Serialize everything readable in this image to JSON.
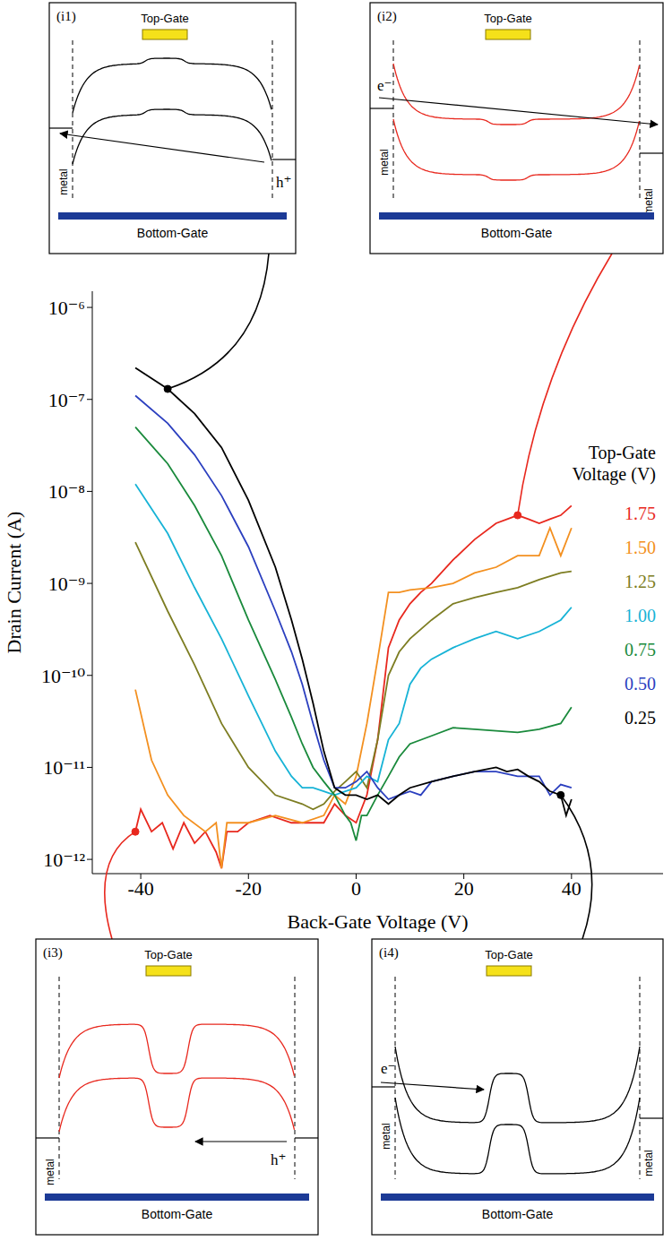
{
  "chart_data": {
    "type": "line",
    "x_label": "Back-Gate Voltage (V)",
    "y_label": "Drain Current (A)",
    "log": "y",
    "grid": false,
    "xlim": [
      -49,
      57
    ],
    "xticks": [
      -40,
      -20,
      0,
      20,
      40
    ],
    "ylim": [
      7e-13,
      1.5e-06
    ],
    "yticks": [
      {
        "value": 1e-12,
        "label": "10⁻¹²"
      },
      {
        "value": 1e-11,
        "label": "10⁻¹¹"
      },
      {
        "value": 1e-10,
        "label": "10⁻¹⁰"
      },
      {
        "value": 1e-09,
        "label": "10⁻⁹"
      },
      {
        "value": 1e-08,
        "label": "10⁻⁸"
      },
      {
        "value": 1e-07,
        "label": "10⁻⁷"
      },
      {
        "value": 1e-06,
        "label": "10⁻⁶"
      }
    ],
    "legend": "right",
    "legend_title": "Top-Gate Voltage (V)",
    "series": [
      {
        "name": "1.75",
        "color": "#e8281e",
        "x": [
          -41,
          -40,
          -38,
          -36,
          -34,
          -32,
          -30,
          -28,
          -26,
          -25,
          -24,
          -22,
          -20,
          -16,
          -12,
          -8,
          -6,
          -4,
          -2,
          0,
          2,
          4,
          6,
          8,
          10,
          12,
          14,
          18,
          22,
          26,
          30,
          32,
          34,
          36,
          38,
          40
        ],
        "values": [
          2e-12,
          3.5e-12,
          2e-12,
          2.5e-12,
          1.3e-12,
          2.5e-12,
          1.5e-12,
          2e-12,
          1.2e-12,
          8e-13,
          2e-12,
          2e-12,
          2.5e-12,
          3e-12,
          2.5e-12,
          2.5e-12,
          2.5e-12,
          4e-12,
          3e-12,
          2.5e-12,
          5e-12,
          2e-11,
          2e-10,
          4e-10,
          6e-10,
          8e-10,
          1e-09,
          1.8e-09,
          3e-09,
          4.5e-09,
          5.5e-09,
          5e-09,
          4.5e-09,
          5e-09,
          5.5e-09,
          7e-09
        ]
      },
      {
        "name": "1.50",
        "color": "#f39020",
        "x": [
          -41,
          -38,
          -35,
          -32,
          -28,
          -26,
          -25,
          -24,
          -20,
          -15,
          -10,
          -6,
          -4,
          -2,
          0,
          2,
          4,
          6,
          8,
          10,
          14,
          18,
          22,
          26,
          30,
          34,
          36,
          38,
          40
        ],
        "values": [
          7e-11,
          1.2e-11,
          5e-12,
          3e-12,
          2e-12,
          2.5e-12,
          8e-13,
          2.5e-12,
          2.5e-12,
          3e-12,
          2.5e-12,
          3e-12,
          5e-12,
          4e-12,
          8e-12,
          3e-11,
          1.5e-10,
          8e-10,
          8e-10,
          8.5e-10,
          9e-10,
          1e-09,
          1.3e-09,
          1.5e-09,
          2e-09,
          2e-09,
          4e-09,
          2e-09,
          4e-09
        ]
      },
      {
        "name": "1.25",
        "color": "#7d7d22",
        "x": [
          -41,
          -35,
          -30,
          -25,
          -20,
          -15,
          -10,
          -8,
          -6,
          -4,
          -2,
          0,
          2,
          4,
          6,
          8,
          10,
          14,
          18,
          22,
          26,
          30,
          34,
          38,
          40
        ],
        "values": [
          2.8e-09,
          5e-10,
          1.3e-10,
          3e-11,
          1e-11,
          5e-12,
          4e-12,
          3.5e-12,
          4e-12,
          5.5e-12,
          7e-12,
          9e-12,
          6e-12,
          2e-11,
          1e-10,
          1.8e-10,
          2.5e-10,
          4e-10,
          6e-10,
          7e-10,
          8e-10,
          9e-10,
          1.1e-09,
          1.3e-09,
          1.35e-09
        ]
      },
      {
        "name": "1.00",
        "color": "#17b3d6",
        "x": [
          -41,
          -35,
          -30,
          -25,
          -20,
          -15,
          -12,
          -10,
          -8,
          -6,
          -4,
          -2,
          0,
          2,
          4,
          6,
          8,
          10,
          12,
          14,
          18,
          22,
          26,
          30,
          34,
          38,
          40
        ],
        "values": [
          1.2e-08,
          3.5e-09,
          9e-10,
          2.5e-10,
          6e-11,
          1.5e-11,
          8e-12,
          6e-12,
          6e-12,
          5.5e-12,
          5e-12,
          5.5e-12,
          6e-12,
          8e-12,
          7e-12,
          2e-11,
          3e-11,
          8e-11,
          1.2e-10,
          1.5e-10,
          2e-10,
          2.5e-10,
          3e-10,
          2.5e-10,
          3e-10,
          4e-10,
          5.5e-10
        ]
      },
      {
        "name": "0.75",
        "color": "#1a8a3c",
        "x": [
          -41,
          -35,
          -30,
          -25,
          -20,
          -15,
          -12,
          -10,
          -8,
          -6,
          -4,
          -2,
          -1,
          0,
          1,
          2,
          4,
          6,
          8,
          10,
          14,
          18,
          22,
          26,
          30,
          34,
          38,
          40
        ],
        "values": [
          5e-08,
          2e-08,
          7e-09,
          2e-09,
          4e-10,
          9e-11,
          3.5e-11,
          1.8e-11,
          1e-11,
          7e-12,
          5e-12,
          3e-12,
          2.5e-12,
          1.6e-12,
          3e-12,
          3e-12,
          5e-12,
          8e-12,
          1.3e-11,
          1.8e-11,
          2.2e-11,
          2.7e-11,
          2.6e-11,
          2.5e-11,
          2.4e-11,
          2.6e-11,
          3e-11,
          4.5e-11
        ]
      },
      {
        "name": "0.50",
        "color": "#2b3fbf",
        "x": [
          -41,
          -35,
          -30,
          -25,
          -20,
          -15,
          -12,
          -10,
          -8,
          -6,
          -4,
          -2,
          0,
          2,
          4,
          6,
          8,
          10,
          12,
          14,
          18,
          22,
          26,
          30,
          34,
          36,
          38,
          40
        ],
        "values": [
          1.1e-07,
          5.5e-08,
          2.5e-08,
          9e-09,
          2.5e-09,
          5e-10,
          1.8e-10,
          8e-11,
          3e-11,
          1.2e-11,
          6e-12,
          6e-12,
          7e-12,
          9e-12,
          6e-12,
          4.5e-12,
          5e-12,
          5.5e-12,
          5e-12,
          7e-12,
          8e-12,
          9e-12,
          9e-12,
          8e-12,
          8e-12,
          5e-12,
          6.5e-12,
          6e-12
        ]
      },
      {
        "name": "0.25",
        "color": "#000000",
        "x": [
          -41,
          -35,
          -30,
          -25,
          -20,
          -15,
          -12,
          -10,
          -8,
          -6,
          -4,
          -2,
          0,
          2,
          4,
          6,
          8,
          10,
          14,
          18,
          22,
          26,
          28,
          30,
          32,
          34,
          36,
          38,
          39,
          40
        ],
        "values": [
          2.2e-07,
          1.3e-07,
          7e-08,
          3e-08,
          8e-09,
          1.5e-09,
          4e-10,
          1.5e-10,
          5e-11,
          1.5e-11,
          6e-12,
          5e-12,
          5e-12,
          4.5e-12,
          5e-12,
          4e-12,
          5e-12,
          6e-12,
          7e-12,
          8e-12,
          9e-12,
          1e-11,
          9e-12,
          9.5e-12,
          8e-12,
          7e-12,
          5.5e-12,
          5e-12,
          3e-12,
          4.5e-12
        ]
      }
    ]
  },
  "insets": [
    {
      "label": "(i1)",
      "top_gate": "Top-Gate",
      "bottom_gate": "Bottom-Gate",
      "metal": [
        "metal"
      ],
      "carrier": "h⁺",
      "series": "0.25",
      "point": {
        "x": -35,
        "y": 1.3e-07
      }
    },
    {
      "label": "(i2)",
      "top_gate": "Top-Gate",
      "bottom_gate": "Bottom-Gate",
      "metal": [
        "metal",
        "metal"
      ],
      "carrier": "e⁻",
      "series": "1.75",
      "point": {
        "x": 30,
        "y": 5.5e-09
      }
    },
    {
      "label": "(i3)",
      "top_gate": "Top-Gate",
      "bottom_gate": "Bottom-Gate",
      "metal": [
        "metal"
      ],
      "carrier": "h⁺",
      "series": "1.75",
      "point": {
        "x": -41,
        "y": 2e-12
      }
    },
    {
      "label": "(i4)",
      "top_gate": "Top-Gate",
      "bottom_gate": "Bottom-Gate",
      "metal": [
        "metal",
        "metal"
      ],
      "carrier": "e⁻",
      "series": "0.25",
      "point": {
        "x": 38,
        "y": 5e-12
      }
    }
  ]
}
